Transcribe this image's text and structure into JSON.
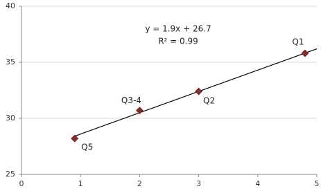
{
  "chart_data": {
    "type": "scatter",
    "x": [
      0.9,
      2.0,
      3.0,
      4.8
    ],
    "series": [
      {
        "color": "#8b2c2c",
        "values": [
          28.2,
          30.7,
          32.4,
          35.8
        ],
        "point_labels": [
          "Q5",
          "Q3-4",
          "Q2",
          "Q1"
        ]
      }
    ],
    "xlim": [
      0,
      5
    ],
    "xticks": [
      0,
      1,
      2,
      3,
      4,
      5
    ],
    "ylim": [
      25,
      40
    ],
    "yticks": [
      25,
      30,
      35,
      40
    ],
    "grid": true,
    "trendline": {
      "label": "y = 1.9x + 26.7",
      "r2_label": "R² = 0.99",
      "slope": 1.9,
      "intercept": 26.7,
      "x": [
        0.9,
        5
      ]
    }
  }
}
